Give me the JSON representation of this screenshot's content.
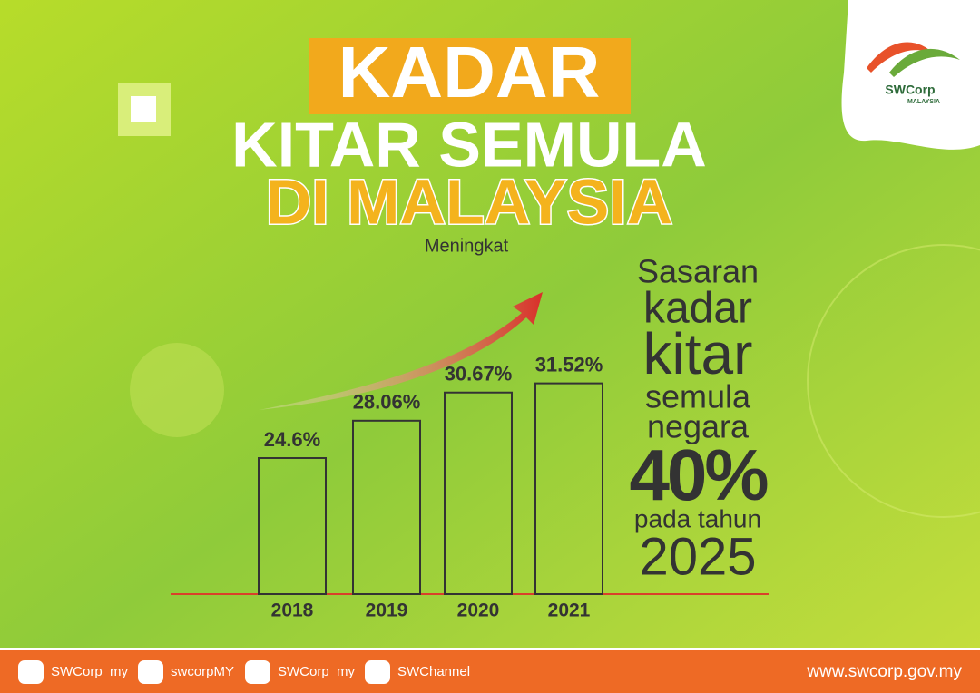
{
  "chart_data": {
    "type": "bar",
    "title_lines": [
      "KADAR",
      "KITAR SEMULA",
      "DI MALAYSIA"
    ],
    "annotation": "Meningkat",
    "target_lines": [
      "Sasaran",
      "kadar",
      "kitar",
      "semula",
      "negara",
      "40%",
      "pada tahun",
      "2025"
    ],
    "categories": [
      "2018",
      "2019",
      "2020",
      "2021"
    ],
    "values": [
      24.6,
      28.06,
      30.67,
      31.52
    ],
    "value_labels": [
      "24.6%",
      "28.06%",
      "30.67%",
      "31.52%"
    ],
    "color": "#333333",
    "ylim": [
      12,
      33
    ]
  },
  "logo": {
    "name": "SWCorp",
    "country": "MALAYSIA"
  },
  "footer": {
    "social": [
      "SWCorp_my",
      "swcorpMY",
      "SWCorp_my",
      "SWChannel"
    ],
    "url": "www.swcorp.gov.my"
  }
}
